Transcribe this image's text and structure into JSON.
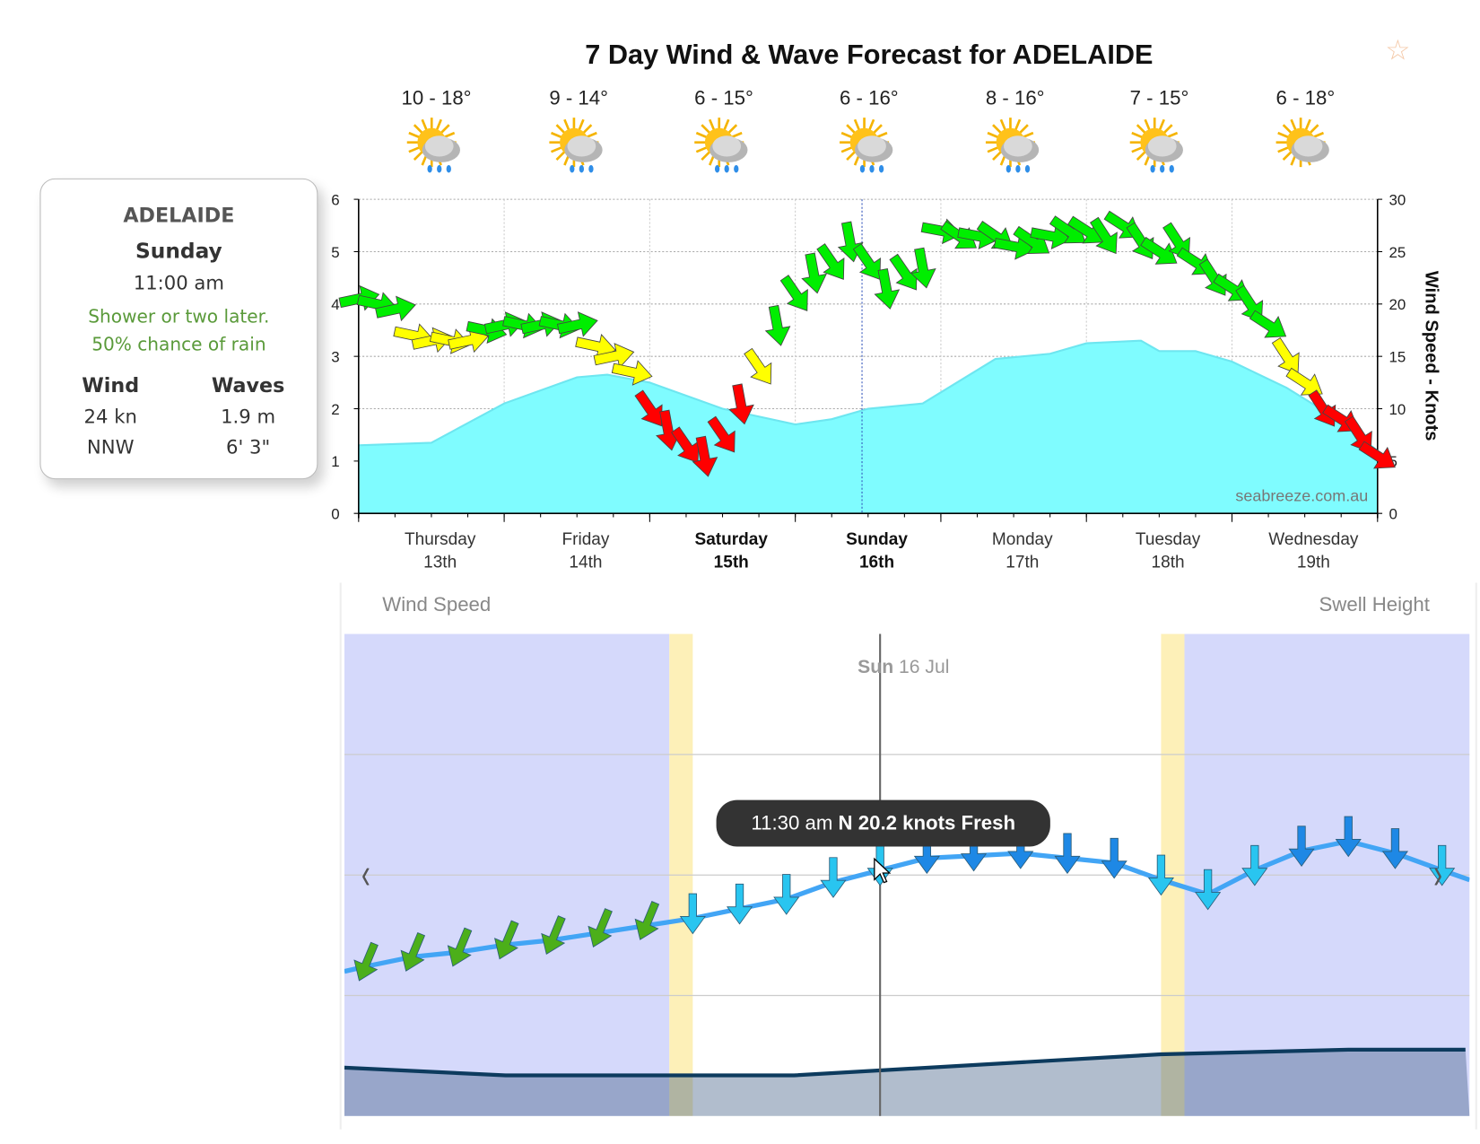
{
  "title": "7 Day Wind & Wave Forecast for ADELAIDE",
  "favorite_icon": "star-outline-icon",
  "daily_forecast": [
    {
      "temp": "10 - 18°",
      "icon": "sun-cloud-rain-icon",
      "rain": true
    },
    {
      "temp": "9 - 14°",
      "icon": "sun-cloud-rain-icon",
      "rain": true
    },
    {
      "temp": "6 - 15°",
      "icon": "sun-cloud-rain-icon",
      "rain": true
    },
    {
      "temp": "6 - 16°",
      "icon": "sun-cloud-rain-icon",
      "rain": true
    },
    {
      "temp": "8 - 16°",
      "icon": "sun-cloud-rain-icon",
      "rain": true
    },
    {
      "temp": "7 - 15°",
      "icon": "sun-cloud-rain-icon",
      "rain": true
    },
    {
      "temp": "6 - 18°",
      "icon": "sun-cloud-icon",
      "rain": false
    }
  ],
  "info_card": {
    "location": "ADELAIDE",
    "day": "Sunday",
    "time": "11:00 am",
    "forecast_line1": "Shower or two later.",
    "forecast_line2": "50% chance of rain",
    "wind_label": "Wind",
    "waves_label": "Waves",
    "wind_speed": "24 kn",
    "wind_dir": "NNW",
    "wave_m": "1.9 m",
    "wave_ft": "6' 3\"",
    "forecast_color": "#5a9a3a"
  },
  "chart_data": [
    {
      "type": "area+arrows",
      "title": "7 Day Wind & Wave Forecast for ADELAIDE",
      "ylabel_right": "Wind Speed - Knots",
      "ylim_left": [
        0,
        6
      ],
      "yticks_left": [
        "0",
        "1",
        "2",
        "3",
        "4",
        "5",
        "6"
      ],
      "ylim_right": [
        0,
        30
      ],
      "yticks_right": [
        "0",
        "5",
        "10",
        "15",
        "20",
        "25",
        "30"
      ],
      "grid": true,
      "watermark": "seabreeze.com.au",
      "x_categories": [
        {
          "day": "Thursday",
          "date": "13th",
          "bold": false
        },
        {
          "day": "Friday",
          "date": "14th",
          "bold": false
        },
        {
          "day": "Saturday",
          "date": "15th",
          "bold": true
        },
        {
          "day": "Sunday",
          "date": "16th",
          "bold": true
        },
        {
          "day": "Monday",
          "date": "17th",
          "bold": false
        },
        {
          "day": "Tuesday",
          "date": "18th",
          "bold": false
        },
        {
          "day": "Wednesday",
          "date": "19th",
          "bold": false
        }
      ],
      "cursor_time": "16 Jul 11:00",
      "wave_height_m": [
        {
          "t": "13 Jul 00:00",
          "v": 1.3
        },
        {
          "t": "13 Jul 12:00",
          "v": 1.35
        },
        {
          "t": "14 Jul 00:00",
          "v": 2.1
        },
        {
          "t": "14 Jul 12:00",
          "v": 2.6
        },
        {
          "t": "14 Jul 17:00",
          "v": 2.65
        },
        {
          "t": "15 Jul 00:00",
          "v": 2.5
        },
        {
          "t": "15 Jul 12:00",
          "v": 2.0
        },
        {
          "t": "16 Jul 00:00",
          "v": 1.7
        },
        {
          "t": "16 Jul 06:00",
          "v": 1.8
        },
        {
          "t": "16 Jul 12:00",
          "v": 2.0
        },
        {
          "t": "16 Jul 21:00",
          "v": 2.1
        },
        {
          "t": "17 Jul 09:00",
          "v": 2.95
        },
        {
          "t": "17 Jul 18:00",
          "v": 3.05
        },
        {
          "t": "18 Jul 00:00",
          "v": 3.25
        },
        {
          "t": "18 Jul 09:00",
          "v": 3.3
        },
        {
          "t": "18 Jul 12:00",
          "v": 3.1
        },
        {
          "t": "18 Jul 18:00",
          "v": 3.1
        },
        {
          "t": "19 Jul 00:00",
          "v": 2.9
        },
        {
          "t": "19 Jul 09:00",
          "v": 2.4
        },
        {
          "t": "19 Jul 16:00",
          "v": 1.9
        },
        {
          "t": "20 Jul 00:00",
          "v": 1.2
        }
      ],
      "wave_color": "#7ffcff",
      "wind_hours": [
        0,
        3,
        6,
        9,
        12,
        15,
        18,
        21
      ],
      "wind_knots": [
        {
          "date": "13 Jul",
          "direction": "W",
          "speeds": [
            20.5,
            20,
            19.5,
            17,
            16.5,
            16.5,
            16.5,
            17.5
          ]
        },
        {
          "date": "14 Jul",
          "direction": "W",
          "speeds": [
            18,
            18,
            18,
            18,
            18,
            16,
            15,
            13.5
          ]
        },
        {
          "date": "15 Jul",
          "direction": "NNW",
          "speeds": [
            10,
            8,
            6.5,
            5.5,
            7.5,
            10.5,
            14,
            18
          ]
        },
        {
          "date": "16 Jul",
          "direction": "NNW",
          "speeds": [
            21,
            23,
            24,
            26,
            24,
            21.5,
            23,
            23.5
          ]
        },
        {
          "date": "17 Jul",
          "direction": "WNW",
          "speeds": [
            27,
            26.5,
            26.5,
            26.5,
            25.5,
            26,
            26.5,
            27
          ]
        },
        {
          "date": "18 Jul",
          "direction": "NW",
          "speeds": [
            27,
            26.5,
            27.5,
            26,
            25,
            26,
            24,
            22.5
          ]
        },
        {
          "date": "19 Jul",
          "direction": "NW",
          "speeds": [
            21.5,
            20,
            18,
            15,
            12.5,
            10,
            9,
            7.5
          ]
        },
        {
          "date": "20 Jul",
          "direction": "NW",
          "speeds": [
            5.5
          ]
        }
      ],
      "wind_colors": {
        "light": "#ff0000",
        "moderate": "#ffff00",
        "strong": "#00ee00"
      }
    },
    {
      "type": "line",
      "left_label": "Wind Speed",
      "right_label": "Swell Height",
      "date_bold": "Sun",
      "date_rest": "16 Jul",
      "prev_icon": "chevron-left-icon",
      "next_icon": "chevron-right-icon",
      "first_light": "07:00",
      "sunrise": "07:30",
      "sunset": "17:30",
      "last_light": "18:00",
      "night_color": "#d5d9fb",
      "twilight_color": "#fdf0b8",
      "ylim_knots": [
        10,
        30
      ],
      "cursor_time": "11:30",
      "tooltip": {
        "time": "11:30 am",
        "detail": "N 20.2 knots Fresh"
      },
      "wind_line_color": "#42a5f5",
      "wind": [
        {
          "t": "00:30",
          "v": 16.2,
          "dir": "NNE"
        },
        {
          "t": "01:30",
          "v": 16.6,
          "dir": "NNE"
        },
        {
          "t": "02:30",
          "v": 16.8,
          "dir": "NNE"
        },
        {
          "t": "03:30",
          "v": 17.1,
          "dir": "NNE"
        },
        {
          "t": "04:30",
          "v": 17.3,
          "dir": "NNE"
        },
        {
          "t": "05:30",
          "v": 17.6,
          "dir": "NNE"
        },
        {
          "t": "06:30",
          "v": 17.9,
          "dir": "NNE"
        },
        {
          "t": "07:30",
          "v": 18.2,
          "dir": "N"
        },
        {
          "t": "08:30",
          "v": 18.6,
          "dir": "N"
        },
        {
          "t": "09:30",
          "v": 19.0,
          "dir": "N"
        },
        {
          "t": "10:30",
          "v": 19.7,
          "dir": "N"
        },
        {
          "t": "11:30",
          "v": 20.2,
          "dir": "N"
        },
        {
          "t": "12:30",
          "v": 20.7,
          "dir": "N"
        },
        {
          "t": "13:30",
          "v": 20.8,
          "dir": "N"
        },
        {
          "t": "14:30",
          "v": 20.9,
          "dir": "N"
        },
        {
          "t": "15:30",
          "v": 20.7,
          "dir": "N"
        },
        {
          "t": "16:30",
          "v": 20.5,
          "dir": "N"
        },
        {
          "t": "17:30",
          "v": 19.8,
          "dir": "N"
        },
        {
          "t": "18:30",
          "v": 19.2,
          "dir": "N"
        },
        {
          "t": "19:30",
          "v": 20.2,
          "dir": "N"
        },
        {
          "t": "20:30",
          "v": 21.0,
          "dir": "N"
        },
        {
          "t": "21:30",
          "v": 21.4,
          "dir": "N"
        },
        {
          "t": "22:30",
          "v": 20.9,
          "dir": "N"
        },
        {
          "t": "23:30",
          "v": 20.2,
          "dir": "N"
        }
      ],
      "arrow_colors": {
        "green": "#4caf1a",
        "light_blue": "#29c5f0",
        "blue": "#1e88e5"
      },
      "swell_m": [
        {
          "t": "00:00",
          "v": 1.7
        },
        {
          "t": "03:30",
          "v": 1.43
        },
        {
          "t": "09:40",
          "v": 1.43
        },
        {
          "t": "17:30",
          "v": 2.17
        },
        {
          "t": "21:30",
          "v": 2.33
        },
        {
          "t": "24:00",
          "v": 2.33
        }
      ],
      "swell_line_color": "#0d3b5e"
    }
  ]
}
